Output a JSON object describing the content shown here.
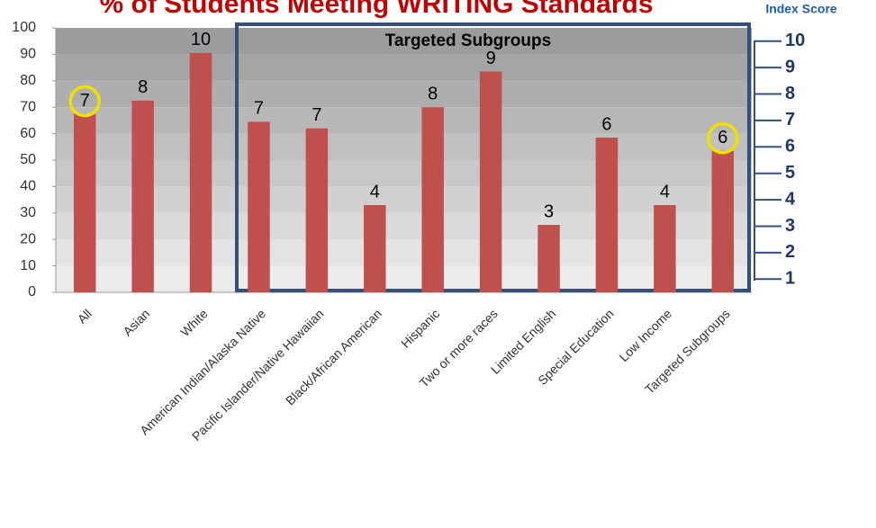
{
  "chart_data": {
    "type": "bar",
    "title": "% of Students Meeting WRITING Standards",
    "y2_title": "Index Score",
    "annotation": "Targeted Subgroups",
    "categories": [
      "All",
      "Asian",
      "White",
      "American Indian/Alaska Native",
      "Pacific Islander/Native Hawaiian",
      "Black/African American",
      "Hispanic",
      "Two or more races",
      "Limited English",
      "Special Education",
      "Low Income",
      "Targeted Subgroups"
    ],
    "values": [
      67.5,
      72.5,
      90.5,
      64.5,
      62,
      33,
      70,
      83.5,
      25.5,
      58.5,
      33,
      53.5
    ],
    "index_scores": [
      7,
      8,
      10,
      7,
      7,
      4,
      8,
      9,
      3,
      6,
      4,
      6
    ],
    "color": "#c0504d",
    "ylim": [
      0,
      100
    ],
    "yticks": [
      0,
      10,
      20,
      30,
      40,
      50,
      60,
      70,
      80,
      90,
      100
    ],
    "y2lim": [
      0.5,
      10.5
    ],
    "y2ticks": [
      1,
      2,
      3,
      4,
      5,
      6,
      7,
      8,
      9,
      10
    ]
  }
}
